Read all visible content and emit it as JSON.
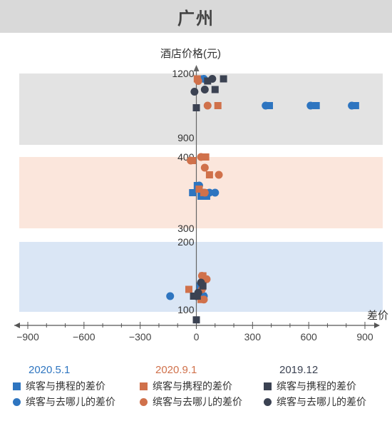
{
  "title": "广州",
  "chart_data": {
    "type": "scatter",
    "title": "广州",
    "xlabel": "差价",
    "ylabel": "酒店价格(元)",
    "xlim": [
      -900,
      900
    ],
    "x_ticks": [
      -900,
      -600,
      -300,
      0,
      300,
      600,
      900
    ],
    "x_tick_labels": [
      "−900",
      "−600",
      "−300",
      "0",
      "300",
      "600",
      "900"
    ],
    "y_ticks": [
      {
        "value": 1200,
        "label": "1200"
      },
      {
        "value": 900,
        "label": "900"
      },
      {
        "value": 400,
        "label": "400"
      },
      {
        "value": 300,
        "label": "300"
      },
      {
        "value": 200,
        "label": "200"
      },
      {
        "value": 100,
        "label": "100"
      }
    ],
    "y_axis_note": "broken axis: 100–200, 300–400, 900–1200",
    "bands": [
      {
        "range": [
          900,
          1200
        ],
        "color": "#e3e3e3"
      },
      {
        "range": [
          300,
          400
        ],
        "color": "#fbe6dc"
      },
      {
        "range": [
          100,
          200
        ],
        "color": "#dae6f5"
      }
    ],
    "groups": [
      {
        "name": "2020.5.1",
        "color": "#2e75c0"
      },
      {
        "name": "2020.9.1",
        "color": "#d0714b"
      },
      {
        "name": "2019.12",
        "color": "#3b4252"
      }
    ],
    "series": [
      {
        "name": "缤客与携程的差价",
        "group": "2020.5.1",
        "marker": "square",
        "color": "#2e75c0",
        "points": [
          [
            25,
            1175
          ],
          [
            390,
            1050
          ],
          [
            640,
            1050
          ],
          [
            850,
            1050
          ],
          [
            -20,
            350
          ],
          [
            5,
            360
          ],
          [
            25,
            345
          ],
          [
            55,
            345
          ],
          [
            20,
            135
          ],
          [
            25,
            130
          ],
          [
            35,
            120
          ]
        ]
      },
      {
        "name": "缤客与去哪儿的差价",
        "group": "2020.5.1",
        "marker": "circle",
        "color": "#2e75c0",
        "points": [
          [
            40,
            1175
          ],
          [
            370,
            1050
          ],
          [
            610,
            1050
          ],
          [
            830,
            1050
          ],
          [
            15,
            360
          ],
          [
            40,
            350
          ],
          [
            70,
            350
          ],
          [
            100,
            350
          ],
          [
            -140,
            120
          ],
          [
            30,
            135
          ],
          [
            40,
            120
          ]
        ]
      },
      {
        "name": "缤客与携程的差价",
        "group": "2020.9.1",
        "marker": "square",
        "color": "#d0714b",
        "points": [
          [
            5,
            1175
          ],
          [
            115,
            1050
          ],
          [
            -20,
            395
          ],
          [
            50,
            400
          ],
          [
            70,
            375
          ],
          [
            15,
            355
          ],
          [
            40,
            350
          ],
          [
            -40,
            130
          ],
          [
            35,
            150
          ],
          [
            45,
            145
          ],
          [
            25,
            115
          ]
        ]
      },
      {
        "name": "缤客与去哪儿的差价",
        "group": "2020.9.1",
        "marker": "circle",
        "color": "#d0714b",
        "points": [
          [
            10,
            1165
          ],
          [
            60,
            1050
          ],
          [
            -30,
            395
          ],
          [
            25,
            400
          ],
          [
            45,
            385
          ],
          [
            120,
            375
          ],
          [
            45,
            350
          ],
          [
            30,
            150
          ],
          [
            55,
            145
          ],
          [
            30,
            130
          ],
          [
            40,
            115
          ]
        ]
      },
      {
        "name": "缤客与携程的差价",
        "group": "2019.12",
        "marker": "square",
        "color": "#3b4252",
        "points": [
          [
            60,
            1165
          ],
          [
            100,
            1125
          ],
          [
            145,
            1175
          ],
          [
            0,
            1040
          ],
          [
            35,
            135
          ],
          [
            -15,
            120
          ],
          [
            5,
            120
          ],
          [
            0,
            85
          ]
        ]
      },
      {
        "name": "缤客与去哪儿的差价",
        "group": "2019.12",
        "marker": "circle",
        "color": "#3b4252",
        "points": [
          [
            -10,
            1115
          ],
          [
            45,
            1125
          ],
          [
            85,
            1175
          ],
          [
            25,
            140
          ],
          [
            0,
            120
          ],
          [
            10,
            125
          ]
        ]
      }
    ]
  },
  "legend": {
    "columns": [
      {
        "head": "2020.5.1",
        "color": "#2e75c0",
        "items": [
          {
            "label": "缤客与携程的差价",
            "marker": "square"
          },
          {
            "label": "缤客与去哪儿的差价",
            "marker": "circle"
          }
        ]
      },
      {
        "head": "2020.9.1",
        "color": "#d0714b",
        "items": [
          {
            "label": "缤客与携程的差价",
            "marker": "square"
          },
          {
            "label": "缤客与去哪儿的差价",
            "marker": "circle"
          }
        ]
      },
      {
        "head": "2019.12",
        "color": "#3b4252",
        "items": [
          {
            "label": "缤客与携程的差价",
            "marker": "square"
          },
          {
            "label": "缤客与去哪儿的差价",
            "marker": "circle"
          }
        ]
      }
    ]
  }
}
